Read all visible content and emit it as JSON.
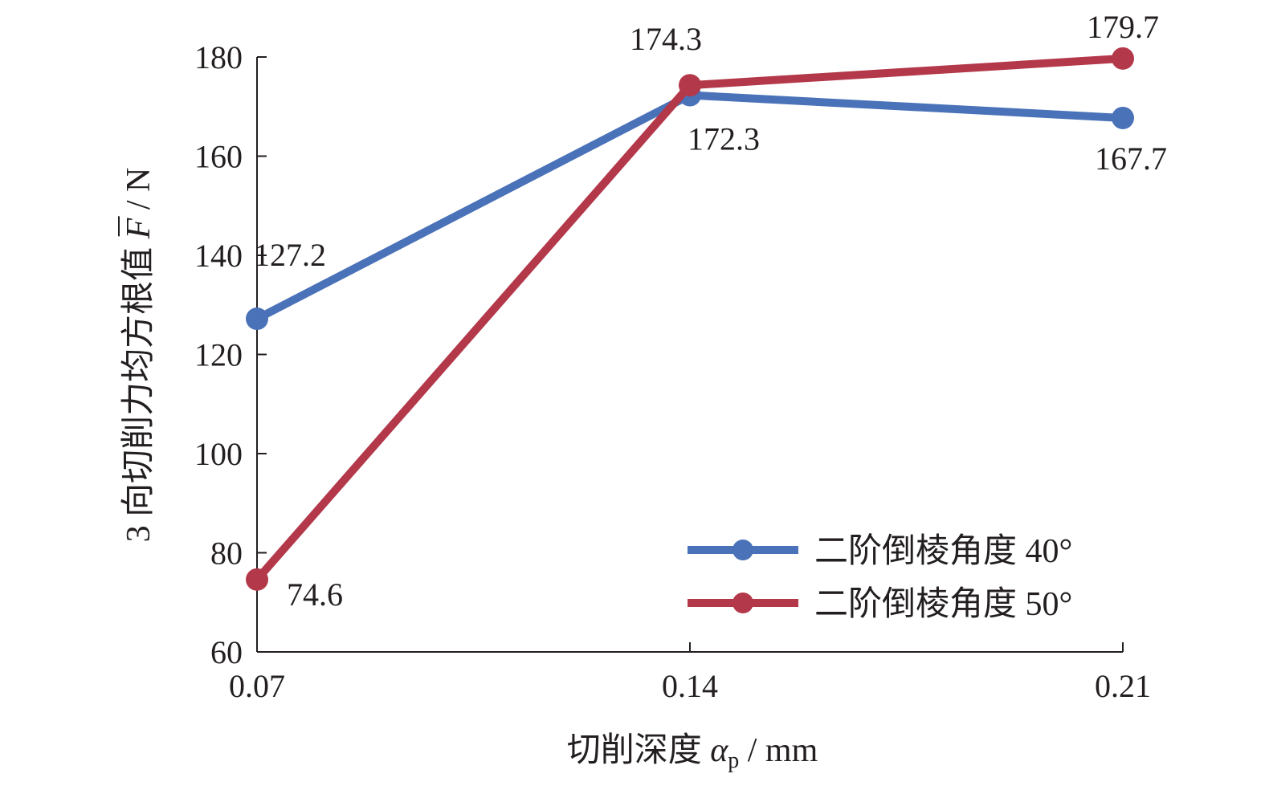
{
  "chart_data": {
    "type": "line",
    "x": [
      "0.07",
      "0.14",
      "0.21"
    ],
    "series": [
      {
        "name": "二阶倒棱角度 40°",
        "values": [
          127.2,
          172.3,
          167.7
        ],
        "color": "#4a72b8"
      },
      {
        "name": "二阶倒棱角度 50°",
        "values": [
          74.6,
          174.3,
          179.7
        ],
        "color": "#b3384a"
      }
    ],
    "data_labels": [
      [
        "127.2",
        "172.3",
        "167.7"
      ],
      [
        "74.6",
        "174.3",
        "179.7"
      ]
    ],
    "ylim": [
      60,
      180
    ],
    "yticks": [
      "60",
      "80",
      "100",
      "120",
      "140",
      "160",
      "180"
    ],
    "xlabel": {
      "text": "切削深度 ",
      "symbol": "α",
      "subscript": "p",
      "unit": " / mm"
    },
    "ylabel": {
      "text": "3 向切削力均方根值 ",
      "symbol": "F",
      "unit": " / N"
    },
    "legend_position": "bottom-right",
    "grid": false
  }
}
